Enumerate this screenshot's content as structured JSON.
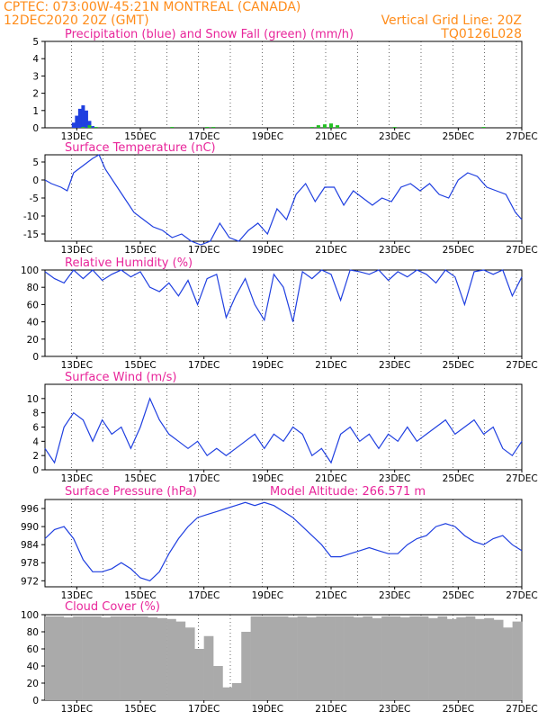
{
  "header": {
    "line1_left": "CPTEC:   073:00W-45:21N   MONTREAL (CANADA)",
    "line2_left": "12DEC2020 20Z (GMT)",
    "line2_right": "Vertical Grid Line: 20Z",
    "line3_right": "TQ0126L028"
  },
  "x_labels": [
    "13DEC",
    "15DEC",
    "17DEC",
    "19DEC",
    "21DEC",
    "23DEC",
    "25DEC",
    "27DEC"
  ],
  "colors": {
    "header": "#ff8c1a",
    "title": "#e8259a",
    "line": "#1f3fe0",
    "snow": "#22c022",
    "cloud": "#aaaaaa"
  },
  "chart_data": [
    {
      "type": "bar",
      "title": "Precipitation (blue) and Snow Fall (green) (mm/h)",
      "ylim": [
        0,
        5
      ],
      "yticks": [
        0,
        1,
        2,
        3,
        4,
        5
      ],
      "series": [
        {
          "name": "Precipitation",
          "x": [
            12.9,
            13.0,
            13.1,
            13.2,
            13.3,
            13.4,
            13.5
          ],
          "values": [
            0.3,
            0.7,
            1.1,
            1.3,
            1.0,
            0.4,
            0.1
          ]
        },
        {
          "name": "Snow Fall",
          "x": [
            13.2,
            13.4,
            13.6,
            16.0,
            17.1,
            17.3,
            20.4,
            20.6,
            20.8,
            21.0,
            21.2,
            23.0,
            25.8
          ],
          "values": [
            0.05,
            0.15,
            0.05,
            0.05,
            0.05,
            0.05,
            0.05,
            0.15,
            0.2,
            0.25,
            0.15,
            0.05,
            0.05
          ]
        }
      ]
    },
    {
      "type": "line",
      "title": "Surface Temperature (nC)",
      "ylim": [
        -17,
        7
      ],
      "yticks": [
        5,
        0,
        -5,
        -10,
        -15
      ],
      "series": [
        {
          "name": "",
          "x": [
            12.0,
            12.2,
            12.5,
            12.7,
            12.9,
            13.2,
            13.5,
            13.7,
            13.9,
            14.2,
            14.5,
            14.8,
            15.1,
            15.4,
            15.7,
            16.0,
            16.3,
            16.6,
            16.9,
            17.2,
            17.5,
            17.8,
            18.1,
            18.4,
            18.7,
            19.0,
            19.3,
            19.6,
            19.9,
            20.2,
            20.5,
            20.8,
            21.1,
            21.4,
            21.7,
            22.0,
            22.3,
            22.6,
            22.9,
            23.2,
            23.5,
            23.8,
            24.1,
            24.4,
            24.7,
            25.0,
            25.3,
            25.6,
            25.9,
            26.2,
            26.5,
            26.8,
            27.0
          ],
          "values": [
            0,
            -1,
            -2,
            -3,
            2,
            4,
            6,
            7,
            3,
            -1,
            -5,
            -9,
            -11,
            -13,
            -14,
            -16,
            -15,
            -17,
            -18,
            -17,
            -12,
            -16,
            -17,
            -14,
            -12,
            -15,
            -8,
            -11,
            -4,
            -1,
            -6,
            -2,
            -2,
            -7,
            -3,
            -5,
            -7,
            -5,
            -6,
            -2,
            -1,
            -3,
            -1,
            -4,
            -5,
            0,
            2,
            1,
            -2,
            -3,
            -4,
            -9,
            -11
          ]
        }
      ]
    },
    {
      "type": "line",
      "title": "Relative Humidity (%)",
      "ylim": [
        0,
        100
      ],
      "yticks": [
        100,
        80,
        60,
        40,
        20,
        0
      ],
      "series": [
        {
          "name": "",
          "x": [
            12.0,
            12.3,
            12.6,
            12.9,
            13.2,
            13.5,
            13.8,
            14.1,
            14.4,
            14.7,
            15.0,
            15.3,
            15.6,
            15.9,
            16.2,
            16.5,
            16.8,
            17.1,
            17.4,
            17.7,
            18.0,
            18.3,
            18.6,
            18.9,
            19.2,
            19.5,
            19.8,
            20.1,
            20.4,
            20.7,
            21.0,
            21.3,
            21.6,
            21.9,
            22.2,
            22.5,
            22.8,
            23.1,
            23.4,
            23.7,
            24.0,
            24.3,
            24.6,
            24.9,
            25.2,
            25.5,
            25.8,
            26.1,
            26.4,
            26.7,
            27.0
          ],
          "values": [
            98,
            90,
            85,
            100,
            90,
            100,
            88,
            95,
            100,
            92,
            98,
            80,
            75,
            85,
            70,
            88,
            60,
            90,
            95,
            45,
            70,
            90,
            60,
            42,
            95,
            80,
            40,
            98,
            90,
            100,
            95,
            65,
            100,
            98,
            95,
            100,
            88,
            98,
            92,
            100,
            95,
            85,
            100,
            92,
            60,
            98,
            100,
            95,
            100,
            70,
            92
          ]
        }
      ]
    },
    {
      "type": "line",
      "title": "Surface Wind (m/s)",
      "ylim": [
        0,
        12
      ],
      "yticks": [
        0,
        2,
        4,
        6,
        8,
        10
      ],
      "series": [
        {
          "name": "",
          "x": [
            12.0,
            12.3,
            12.6,
            12.9,
            13.2,
            13.5,
            13.8,
            14.1,
            14.4,
            14.7,
            15.0,
            15.3,
            15.6,
            15.9,
            16.2,
            16.5,
            16.8,
            17.1,
            17.4,
            17.7,
            18.0,
            18.3,
            18.6,
            18.9,
            19.2,
            19.5,
            19.8,
            20.1,
            20.4,
            20.7,
            21.0,
            21.3,
            21.6,
            21.9,
            22.2,
            22.5,
            22.8,
            23.1,
            23.4,
            23.7,
            24.0,
            24.3,
            24.6,
            24.9,
            25.2,
            25.5,
            25.8,
            26.1,
            26.4,
            26.7,
            27.0
          ],
          "values": [
            3,
            1,
            6,
            8,
            7,
            4,
            7,
            5,
            6,
            3,
            6,
            10,
            7,
            5,
            4,
            3,
            4,
            2,
            3,
            2,
            3,
            4,
            5,
            3,
            5,
            4,
            6,
            5,
            2,
            3,
            1,
            5,
            6,
            4,
            5,
            3,
            5,
            4,
            6,
            4,
            5,
            6,
            7,
            5,
            6,
            7,
            5,
            6,
            3,
            2,
            4
          ]
        }
      ]
    },
    {
      "type": "line",
      "title": "Surface Pressure (hPa)",
      "subtitle": "Model Altitude: 266.571  m",
      "ylim": [
        970,
        999
      ],
      "yticks": [
        996,
        990,
        984,
        978,
        972
      ],
      "series": [
        {
          "name": "",
          "x": [
            12.0,
            12.3,
            12.6,
            12.9,
            13.2,
            13.5,
            13.8,
            14.1,
            14.4,
            14.7,
            15.0,
            15.3,
            15.6,
            15.9,
            16.2,
            16.5,
            16.8,
            17.1,
            17.4,
            17.7,
            18.0,
            18.3,
            18.6,
            18.9,
            19.2,
            19.5,
            19.8,
            20.1,
            20.4,
            20.7,
            21.0,
            21.3,
            21.6,
            21.9,
            22.2,
            22.5,
            22.8,
            23.1,
            23.4,
            23.7,
            24.0,
            24.3,
            24.6,
            24.9,
            25.2,
            25.5,
            25.8,
            26.1,
            26.4,
            26.7,
            27.0
          ],
          "values": [
            986,
            989,
            990,
            986,
            979,
            975,
            975,
            976,
            978,
            976,
            973,
            972,
            975,
            981,
            986,
            990,
            993,
            994,
            995,
            996,
            997,
            998,
            997,
            998,
            997,
            995,
            993,
            990,
            987,
            984,
            980,
            980,
            981,
            982,
            983,
            982,
            981,
            981,
            984,
            986,
            987,
            990,
            991,
            990,
            987,
            985,
            984,
            986,
            987,
            984,
            982
          ]
        }
      ]
    },
    {
      "type": "bar",
      "title": "Cloud Cover (%)",
      "ylim": [
        0,
        100
      ],
      "yticks": [
        100,
        80,
        60,
        40,
        20,
        0
      ],
      "series": [
        {
          "name": "",
          "x": [
            12.0,
            12.3,
            12.6,
            12.9,
            13.2,
            13.5,
            13.8,
            14.1,
            14.4,
            14.7,
            15.0,
            15.3,
            15.6,
            15.9,
            16.2,
            16.5,
            16.8,
            17.1,
            17.4,
            17.7,
            18.0,
            18.3,
            18.6,
            18.9,
            19.2,
            19.5,
            19.8,
            20.1,
            20.4,
            20.7,
            21.0,
            21.3,
            21.6,
            21.9,
            22.2,
            22.5,
            22.8,
            23.1,
            23.4,
            23.7,
            24.0,
            24.3,
            24.6,
            24.9,
            25.2,
            25.5,
            25.8,
            26.1,
            26.4,
            26.7,
            27.0
          ],
          "values": [
            98,
            98,
            97,
            98,
            98,
            98,
            97,
            98,
            98,
            98,
            98,
            97,
            96,
            95,
            92,
            85,
            60,
            75,
            40,
            15,
            20,
            80,
            98,
            98,
            98,
            98,
            97,
            98,
            97,
            98,
            98,
            98,
            98,
            97,
            98,
            96,
            98,
            98,
            97,
            98,
            98,
            96,
            98,
            95,
            97,
            98,
            95,
            96,
            94,
            85,
            92
          ]
        }
      ]
    }
  ]
}
